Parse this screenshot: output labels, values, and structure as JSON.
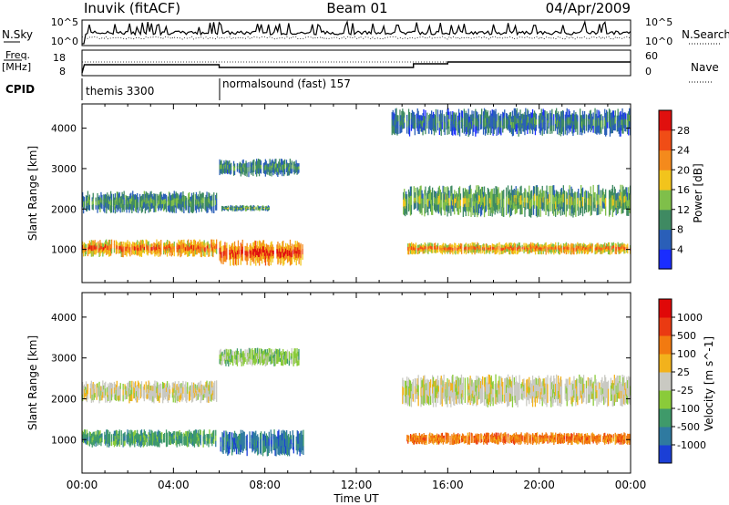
{
  "header": {
    "station": "Inuvik (fitACF)",
    "beam": "Beam 01",
    "date": "04/Apr/2009"
  },
  "noise_panel": {
    "left_label": "N.Sky",
    "right_label": "N.Search",
    "left_ticks": [
      "10^5",
      "10^0"
    ],
    "right_ticks": [
      "10^5",
      "10^0"
    ]
  },
  "freq_panel": {
    "left_label": "Freq.",
    "left_unit": "[MHz]",
    "right_label": "Nave",
    "left_ticks": [
      "18",
      "8"
    ],
    "right_ticks": [
      "60",
      "0"
    ]
  },
  "cpid": {
    "label": "CPID",
    "modes": [
      {
        "name": "themis 3300",
        "start_hour": 0
      },
      {
        "name": "normalsound (fast) 157",
        "start_hour": 6
      }
    ]
  },
  "chart_data": [
    {
      "type": "heatmap",
      "title": "",
      "xlabel": "Time UT",
      "ylabel": "Slant Range [km]",
      "xlim_hours": [
        0,
        24
      ],
      "x_ticks": [
        "00:00",
        "04:00",
        "08:00",
        "12:00",
        "16:00",
        "20:00",
        "00:00"
      ],
      "ylim_km": [
        180,
        4600
      ],
      "y_ticks": [
        1000,
        2000,
        3000,
        4000
      ],
      "colorbar": {
        "label": "Power [dB]",
        "ticks": [
          "4",
          "8",
          "12",
          "16",
          "20",
          "24",
          "28"
        ],
        "colors": [
          "#1a2dff",
          "#2a5fb8",
          "#3f8a62",
          "#7fbf4a",
          "#f2c41c",
          "#f48a1c",
          "#f04d16",
          "#e0100e"
        ]
      },
      "echo_regions": [
        {
          "t0": 0.0,
          "t1": 5.9,
          "r0": 820,
          "r1": 1250,
          "level": 0.85
        },
        {
          "t0": 6.0,
          "t1": 9.7,
          "r0": 600,
          "r1": 1250,
          "level": 0.95
        },
        {
          "t0": 14.2,
          "t1": 24.0,
          "r0": 880,
          "r1": 1180,
          "level": 0.78
        },
        {
          "t0": 0.0,
          "t1": 5.9,
          "r0": 1900,
          "r1": 2450,
          "level": 0.35
        },
        {
          "t0": 6.1,
          "t1": 8.2,
          "r0": 1950,
          "r1": 2100,
          "level": 0.4
        },
        {
          "t0": 14.0,
          "t1": 24.0,
          "r0": 1800,
          "r1": 2600,
          "level": 0.45
        },
        {
          "t0": 6.0,
          "t1": 9.5,
          "r0": 2800,
          "r1": 3250,
          "level": 0.3
        },
        {
          "t0": 13.5,
          "t1": 24.0,
          "r0": 3800,
          "r1": 4500,
          "level": 0.25
        }
      ]
    },
    {
      "type": "heatmap",
      "title": "",
      "xlabel": "Time UT",
      "ylabel": "Slant Range [km]",
      "xlim_hours": [
        0,
        24
      ],
      "x_ticks": [
        "00:00",
        "04:00",
        "08:00",
        "12:00",
        "16:00",
        "20:00",
        "00:00"
      ],
      "ylim_km": [
        180,
        4600
      ],
      "y_ticks": [
        1000,
        2000,
        3000,
        4000
      ],
      "colorbar": {
        "label": "Velocity [m s^-1]",
        "ticks": [
          "1000",
          "500",
          "100",
          "25",
          "-25",
          "-100",
          "-500",
          "-1000"
        ],
        "colors": [
          "#1b3fd6",
          "#2f7aa0",
          "#3f9a6a",
          "#8acb3a",
          "#c9c9c2",
          "#f2b21c",
          "#f27a10",
          "#ea3a12",
          "#e00808"
        ]
      },
      "echo_regions": [
        {
          "t0": 0.0,
          "t1": 5.9,
          "r0": 820,
          "r1": 1250,
          "velocity_class": 2
        },
        {
          "t0": 6.0,
          "t1": 9.7,
          "r0": 600,
          "r1": 1250,
          "velocity_class": 1
        },
        {
          "t0": 14.2,
          "t1": 24.0,
          "r0": 880,
          "r1": 1180,
          "velocity_class": 6
        },
        {
          "t0": 0.0,
          "t1": 5.9,
          "r0": 1900,
          "r1": 2450,
          "velocity_class": 4
        },
        {
          "t0": 14.0,
          "t1": 24.0,
          "r0": 1800,
          "r1": 2600,
          "velocity_class": 4
        },
        {
          "t0": 6.0,
          "t1": 9.5,
          "r0": 2800,
          "r1": 3250,
          "velocity_class": 3
        }
      ]
    }
  ]
}
